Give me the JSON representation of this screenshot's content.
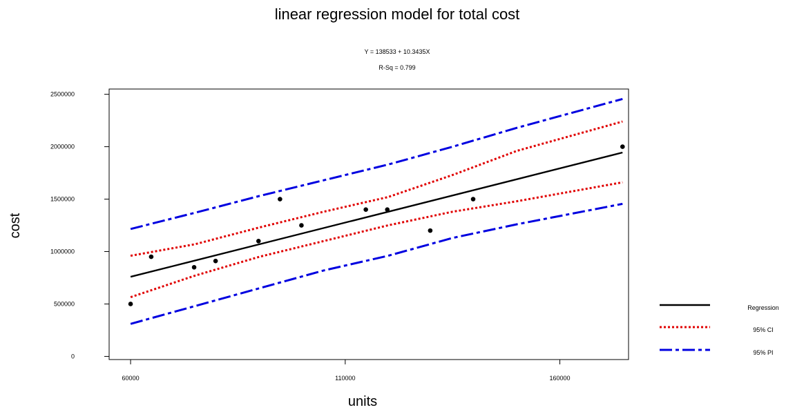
{
  "chart_data": {
    "type": "scatter",
    "title": "linear regression model for total cost",
    "subtitle_lines": [
      "Y = 138533 + 10.3435X",
      "R-Sq = 0.799"
    ],
    "xlabel": "units",
    "ylabel": "cost",
    "xlim": [
      55000,
      176000
    ],
    "ylim": [
      -30000,
      2550000
    ],
    "x_ticks": [
      60000,
      110000,
      160000
    ],
    "x_tick_labels": [
      "60000",
      "110000",
      "160000"
    ],
    "y_ticks": [
      0,
      500000,
      1000000,
      1500000,
      2000000,
      2500000
    ],
    "y_tick_labels": [
      "0",
      "500000",
      "1000000",
      "1500000",
      "2000000",
      "2500000"
    ],
    "grid": false,
    "legend_position": "right",
    "points": {
      "x": [
        60000,
        64800,
        74800,
        79800,
        89800,
        94800,
        99800,
        114800,
        119800,
        129800,
        139800,
        174600
      ],
      "y": [
        500000,
        950000,
        850000,
        910000,
        1100000,
        1500000,
        1250000,
        1400000,
        1400000,
        1200000,
        1500000,
        2000000
      ],
      "color": "#000000"
    },
    "fit": {
      "intercept": 138533,
      "slope": 10.3435,
      "x_range": [
        60000,
        174600
      ]
    },
    "ci_band": {
      "x": [
        60000,
        75000,
        90000,
        105000,
        120000,
        135000,
        150000,
        174600
      ],
      "lower": [
        565000,
        770000,
        950000,
        1100000,
        1250000,
        1380000,
        1480000,
        1660000
      ],
      "upper": [
        960000,
        1070000,
        1230000,
        1380000,
        1520000,
        1730000,
        1960000,
        2240000
      ]
    },
    "pi_band": {
      "x": [
        60000,
        75000,
        90000,
        105000,
        120000,
        135000,
        150000,
        174600
      ],
      "lower": [
        310000,
        480000,
        650000,
        820000,
        960000,
        1130000,
        1260000,
        1455000
      ],
      "upper": [
        1215000,
        1370000,
        1530000,
        1680000,
        1830000,
        2000000,
        2180000,
        2455000
      ]
    },
    "legend": [
      {
        "label": "Regression",
        "color": "#000000",
        "style": "solid"
      },
      {
        "label": "95% CI",
        "color": "#e00000",
        "style": "dotted"
      },
      {
        "label": "95% PI",
        "color": "#0000e0",
        "style": "dashdot"
      }
    ]
  }
}
